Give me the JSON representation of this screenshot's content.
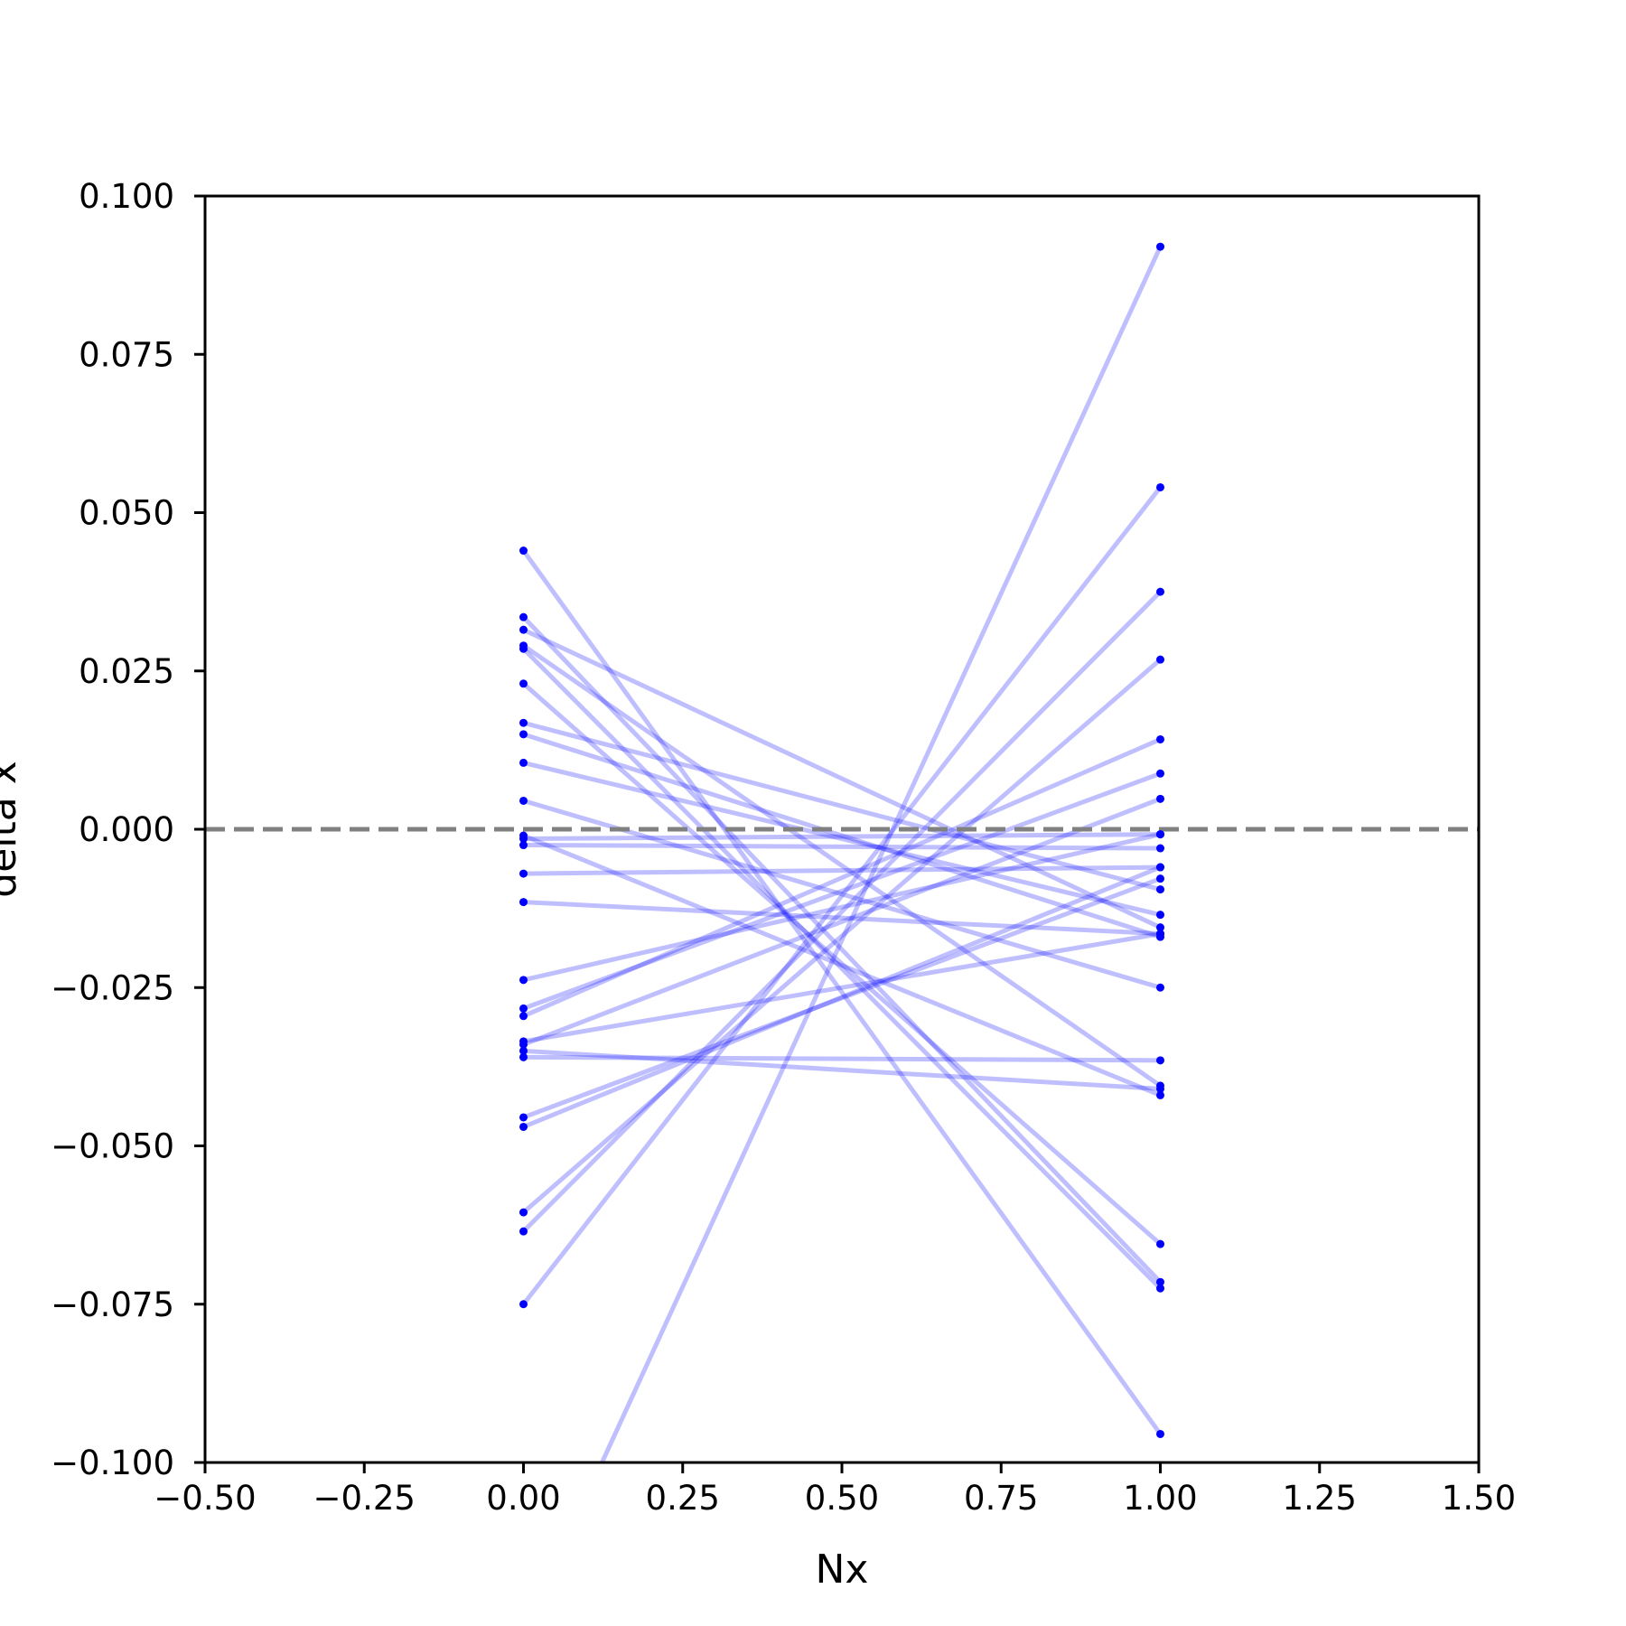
{
  "chart_data": {
    "type": "line",
    "xlabel": "Nx",
    "ylabel": "delta x",
    "xlim": [
      -0.5,
      1.5
    ],
    "ylim": [
      -0.1,
      0.1
    ],
    "xticks": [
      "−0.50",
      "−0.25",
      "0.00",
      "0.25",
      "0.50",
      "0.75",
      "1.00",
      "1.25",
      "1.50"
    ],
    "xtick_values": [
      -0.5,
      -0.25,
      0.0,
      0.25,
      0.5,
      0.75,
      1.0,
      1.25,
      1.5
    ],
    "yticks": [
      "−0.100",
      "−0.075",
      "−0.050",
      "−0.025",
      "0.000",
      "0.025",
      "0.050",
      "0.075",
      "0.100"
    ],
    "ytick_values": [
      -0.1,
      -0.075,
      -0.05,
      -0.025,
      0.0,
      0.025,
      0.05,
      0.075,
      0.1
    ],
    "reference_line": {
      "y": 0.0,
      "style": "dashed",
      "color": "#808080"
    },
    "grid": false,
    "line_color": "#0000ff",
    "line_opacity": 0.25,
    "marker_color": "#0000ff",
    "pairs": [
      [
        0.044,
        -0.0955
      ],
      [
        0.0335,
        -0.0715
      ],
      [
        0.0315,
        -0.0155
      ],
      [
        0.029,
        -0.0405
      ],
      [
        0.0285,
        -0.0725
      ],
      [
        0.023,
        -0.0655
      ],
      [
        0.0168,
        -0.0095
      ],
      [
        0.015,
        -0.017
      ],
      [
        0.0105,
        -0.0135
      ],
      [
        -0.001,
        -0.042
      ],
      [
        -0.0015,
        -0.0008
      ],
      [
        -0.0025,
        -0.003
      ],
      [
        -0.007,
        -0.006
      ],
      [
        -0.0115,
        -0.0165
      ],
      [
        -0.0238,
        -0.0008
      ],
      [
        -0.0283,
        0.0088
      ],
      [
        -0.0295,
        0.0142
      ],
      [
        -0.0335,
        -0.0165
      ],
      [
        -0.034,
        0.0048
      ],
      [
        -0.035,
        -0.041
      ],
      [
        -0.036,
        -0.0365
      ],
      [
        -0.0455,
        -0.0078
      ],
      [
        -0.047,
        -0.006
      ],
      [
        -0.0605,
        0.0268
      ],
      [
        -0.0635,
        0.0375
      ],
      [
        -0.075,
        0.054
      ],
      [
        -0.127,
        0.092
      ],
      [
        0.0045,
        -0.025
      ]
    ]
  }
}
